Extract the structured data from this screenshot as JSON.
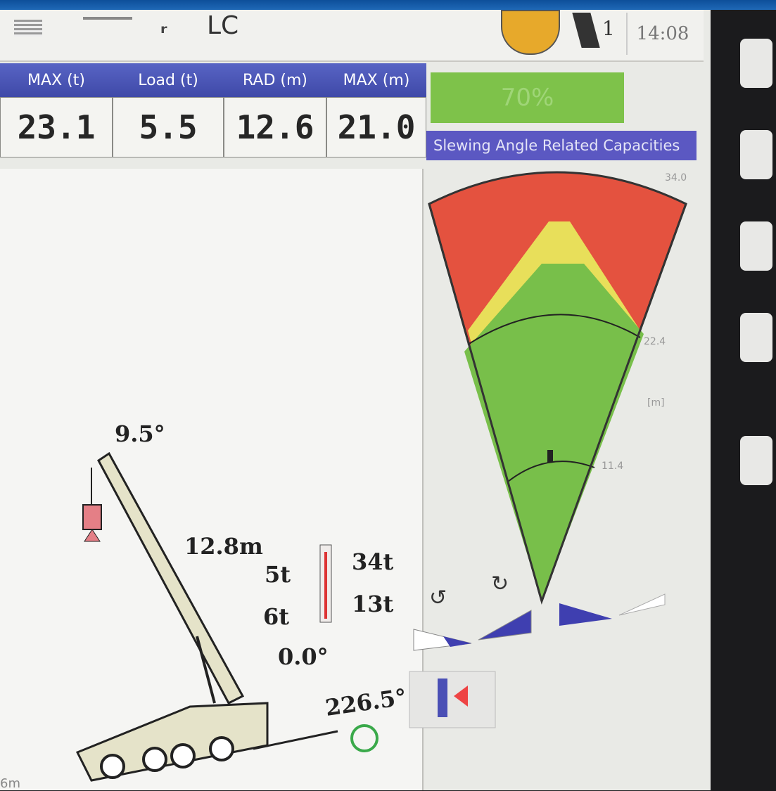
{
  "status_bar": {
    "mode": "LC",
    "gear": "1",
    "time": "14:08"
  },
  "table": {
    "headers": [
      "MAX (t)",
      "Load (t)",
      "RAD (m)",
      "MAX (m)"
    ],
    "values": [
      "23.1",
      "5.5",
      "12.6",
      "21.0"
    ]
  },
  "utilization": "70%",
  "slewing_panel": {
    "title": "Slewing Angle Related Capacities",
    "radius_labels": [
      "34.0",
      "22.4",
      "11.4"
    ],
    "unit": "[m]"
  },
  "crane_view": {
    "boom_angle": "9.5°",
    "boom_length": "12.8m",
    "load_labels": [
      "5t",
      "6t",
      "34t",
      "13t"
    ],
    "tilt_angle": "0.0°",
    "slew_angle": "226.5°",
    "scale": "6m"
  }
}
